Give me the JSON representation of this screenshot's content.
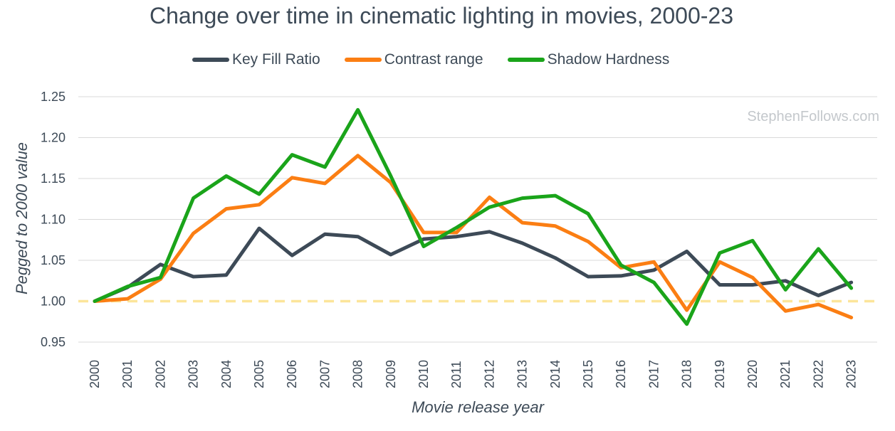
{
  "chart_data": {
    "type": "line",
    "title": "Change over time in cinematic lighting in movies, 2000-23",
    "xlabel": "Movie release year",
    "ylabel": "Pegged to 2000 value",
    "watermark": "StephenFollows.com",
    "ylim": [
      0.95,
      1.25
    ],
    "yticks": [
      "0.95",
      "1.00",
      "1.05",
      "1.10",
      "1.15",
      "1.20",
      "1.25"
    ],
    "reference_line": 1.0,
    "reference_color": "#fce59a",
    "grid": true,
    "categories": [
      "2000",
      "2001",
      "2002",
      "2003",
      "2004",
      "2005",
      "2006",
      "2007",
      "2008",
      "2009",
      "2010",
      "2011",
      "2012",
      "2013",
      "2014",
      "2015",
      "2016",
      "2017",
      "2018",
      "2019",
      "2020",
      "2021",
      "2022",
      "2023"
    ],
    "series": [
      {
        "name": "Key Fill Ratio",
        "color": "#3d4a57",
        "values": [
          1.0,
          1.017,
          1.045,
          1.03,
          1.032,
          1.089,
          1.056,
          1.082,
          1.079,
          1.057,
          1.076,
          1.079,
          1.085,
          1.071,
          1.053,
          1.03,
          1.031,
          1.038,
          1.061,
          1.02,
          1.02,
          1.025,
          1.007,
          1.023
        ]
      },
      {
        "name": "Contrast range",
        "color": "#fb7e13",
        "values": [
          1.0,
          1.003,
          1.027,
          1.083,
          1.113,
          1.118,
          1.151,
          1.144,
          1.178,
          1.145,
          1.084,
          1.084,
          1.127,
          1.096,
          1.092,
          1.073,
          1.041,
          1.048,
          0.989,
          1.048,
          1.029,
          0.988,
          0.996,
          0.98
        ]
      },
      {
        "name": "Shadow Hardness",
        "color": "#1aa41a",
        "values": [
          1.0,
          1.018,
          1.029,
          1.126,
          1.153,
          1.131,
          1.179,
          1.164,
          1.234,
          1.153,
          1.067,
          1.09,
          1.115,
          1.126,
          1.129,
          1.107,
          1.044,
          1.023,
          0.972,
          1.059,
          1.074,
          1.014,
          1.064,
          1.016
        ]
      }
    ]
  }
}
